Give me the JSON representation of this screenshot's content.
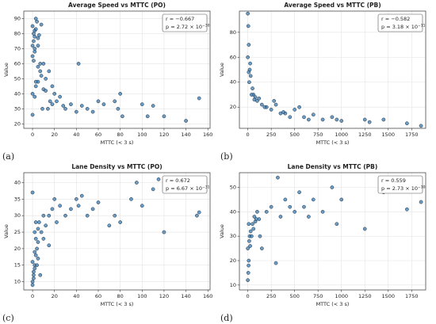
{
  "chart_data": [
    {
      "type": "scatter",
      "title": "Average Speed vs MTTC (PO)",
      "x_label": "MTTC (< 3 s)",
      "y_label": "Value",
      "panel_label": "(a)",
      "annotation": {
        "r": "r = −0.667",
        "p": "p = 2.72 × 10",
        "p_exp": "−30"
      },
      "color": "#3b7cb3",
      "grid": true,
      "xlim": [
        -8,
        162
      ],
      "xticks": [
        0,
        20,
        40,
        60,
        80,
        100,
        120,
        140,
        160
      ],
      "ylim": [
        17,
        95
      ],
      "yticks": [
        20,
        30,
        40,
        50,
        60,
        70,
        80,
        90
      ],
      "x": [
        0,
        1,
        2,
        3,
        1,
        2,
        4,
        5,
        0,
        3,
        6,
        8,
        2,
        1,
        5,
        7,
        10,
        12,
        3,
        0,
        2,
        15,
        18,
        5,
        8,
        10,
        20,
        22,
        25,
        12,
        0,
        5,
        2,
        14,
        16,
        18,
        28,
        30,
        35,
        40,
        42,
        45,
        50,
        55,
        60,
        65,
        75,
        78,
        80,
        82,
        100,
        105,
        110,
        120,
        140,
        152,
        0,
        7,
        3,
        9
      ],
      "values": [
        85,
        80,
        78,
        90,
        75,
        82,
        88,
        77,
        72,
        83,
        79,
        86,
        70,
        62,
        58,
        55,
        60,
        50,
        45,
        40,
        38,
        55,
        45,
        48,
        52,
        43,
        40,
        35,
        38,
        42,
        26,
        72,
        68,
        30,
        35,
        33,
        32,
        30,
        33,
        28,
        60,
        32,
        30,
        28,
        35,
        33,
        35,
        30,
        40,
        25,
        33,
        25,
        32,
        25,
        22,
        37,
        65,
        60,
        48,
        30
      ]
    },
    {
      "type": "scatter",
      "title": "Average Speed vs MTTC (PB)",
      "x_label": "MTTC (< 3 s)",
      "y_label": "Value",
      "panel_label": "(b)",
      "annotation": {
        "r": "r = −0.582",
        "p": "p = 3.18 × 10",
        "p_exp": "−11"
      },
      "color": "#3b7cb3",
      "grid": true,
      "xlim": [
        -90,
        1900
      ],
      "xticks": [
        0,
        250,
        500,
        750,
        1000,
        1250,
        1500,
        1750
      ],
      "ylim": [
        3,
        97
      ],
      "yticks": [
        20,
        40,
        60,
        80
      ],
      "x": [
        0,
        5,
        10,
        0,
        20,
        30,
        15,
        50,
        60,
        80,
        100,
        120,
        150,
        200,
        250,
        300,
        350,
        400,
        450,
        500,
        550,
        600,
        650,
        700,
        800,
        900,
        950,
        1000,
        1250,
        1300,
        1450,
        1700,
        1850,
        40,
        70,
        25,
        10,
        180,
        280,
        380
      ],
      "values": [
        95,
        85,
        70,
        60,
        50,
        45,
        40,
        35,
        30,
        28,
        25,
        27,
        22,
        20,
        18,
        22,
        15,
        15,
        12,
        18,
        20,
        12,
        10,
        14,
        10,
        12,
        10,
        9,
        10,
        8,
        10,
        7,
        5,
        30,
        26,
        55,
        48,
        20,
        25,
        16
      ]
    },
    {
      "type": "scatter",
      "title": "Lane Density vs MTTC (PO)",
      "x_label": "MTTC (< 3 s)",
      "y_label": "Value",
      "panel_label": "(c)",
      "annotation": {
        "r": "r = 0.672",
        "p": "p = 6.67 × 10",
        "p_exp": "−31"
      },
      "color": "#3b7cb3",
      "grid": true,
      "xlim": [
        -8,
        162
      ],
      "xticks": [
        0,
        20,
        40,
        60,
        80,
        100,
        120,
        140,
        160
      ],
      "ylim": [
        7.5,
        43
      ],
      "yticks": [
        10,
        15,
        20,
        25,
        30,
        35,
        40
      ],
      "x": [
        0,
        1,
        2,
        0,
        3,
        1,
        2,
        4,
        5,
        0,
        2,
        3,
        6,
        8,
        10,
        12,
        5,
        7,
        15,
        18,
        20,
        22,
        25,
        3,
        2,
        1,
        30,
        35,
        40,
        42,
        45,
        50,
        55,
        60,
        70,
        75,
        80,
        90,
        95,
        100,
        110,
        115,
        120,
        150,
        152,
        0,
        5,
        10,
        15,
        4
      ],
      "values": [
        10,
        12,
        14,
        16,
        18,
        13,
        15,
        20,
        22,
        37,
        25,
        28,
        28,
        25,
        30,
        27,
        17,
        12,
        30,
        32,
        35,
        28,
        33,
        23,
        19,
        11,
        30,
        32,
        35,
        33,
        36,
        30,
        32,
        34,
        27,
        30,
        28,
        35,
        40,
        33,
        38,
        41,
        25,
        30,
        31,
        9,
        26,
        23,
        21,
        15
      ]
    },
    {
      "type": "scatter",
      "title": "Lane Density vs MTTC (PB)",
      "x_label": "MTTC (< 3 s)",
      "y_label": "Value",
      "panel_label": "(d)",
      "annotation": {
        "r": "r = 0.559",
        "p": "p = 2.73 × 10",
        "p_exp": "−10"
      },
      "color": "#3b7cb3",
      "grid": true,
      "xlim": [
        -90,
        1900
      ],
      "xticks": [
        0,
        250,
        500,
        750,
        1000,
        1250,
        1500,
        1750
      ],
      "ylim": [
        8,
        56
      ],
      "yticks": [
        10,
        20,
        30,
        40,
        50
      ],
      "x": [
        0,
        5,
        10,
        0,
        15,
        20,
        30,
        40,
        50,
        60,
        70,
        80,
        100,
        120,
        150,
        200,
        250,
        300,
        320,
        350,
        400,
        450,
        500,
        550,
        600,
        650,
        700,
        800,
        900,
        950,
        1000,
        1250,
        1450,
        1700,
        1850,
        10,
        25,
        8,
        90,
        130
      ],
      "values": [
        12,
        15,
        20,
        25,
        28,
        30,
        32,
        30,
        35,
        33,
        38,
        36,
        40,
        37,
        25,
        40,
        42,
        19,
        54,
        38,
        45,
        42,
        40,
        48,
        42,
        38,
        45,
        40,
        50,
        35,
        45,
        33,
        48,
        41,
        44,
        35,
        26,
        18,
        37,
        30
      ]
    }
  ]
}
